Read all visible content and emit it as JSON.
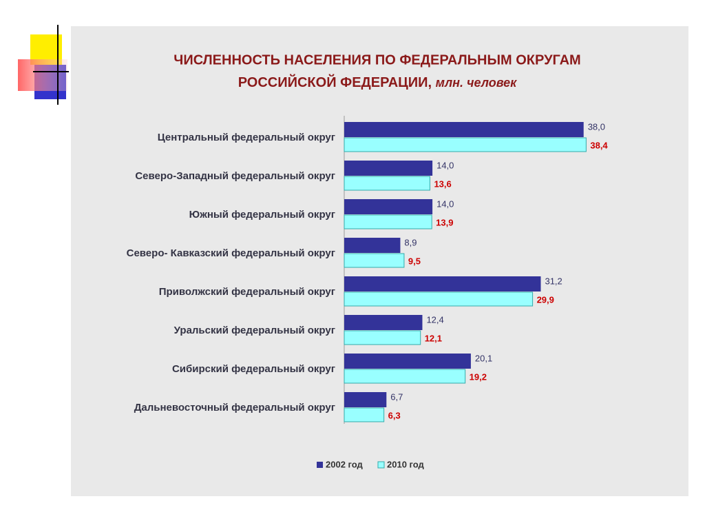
{
  "chart_data": {
    "type": "hbar",
    "title": [
      "ЧИСЛЕННОСТЬ НАСЕЛЕНИЯ ПО ФЕДЕРАЛЬНЫМ ОКРУГАМ",
      "РОССИЙСКОЙ ФЕДЕРАЦИИ,"
    ],
    "unit": "млн. человек",
    "categories": [
      "Центральный федеральный округ",
      "Северо-Западный федеральный округ",
      "Южный федеральный округ",
      "Северо- Кавказский федеральный округ",
      "Приволжский федеральный округ",
      "Уральский федеральный округ",
      "Сибирский федеральный округ",
      "Дальневосточный федеральный округ"
    ],
    "series": [
      {
        "name": "2002 год",
        "color": "#333399",
        "label_color": "#333366",
        "values": [
          38.0,
          14.0,
          14.0,
          8.9,
          31.2,
          12.4,
          20.1,
          6.7
        ],
        "value_labels": [
          "38,0",
          "14,0",
          "14,0",
          "8,9",
          "31,2",
          "12,4",
          "20,1",
          "6,7"
        ]
      },
      {
        "name": "2010 год",
        "color": "#99ffff",
        "label_color": "#cc0000",
        "values": [
          38.4,
          13.6,
          13.9,
          9.5,
          29.9,
          12.1,
          19.2,
          6.3
        ],
        "value_labels": [
          "38,4",
          "13,6",
          "13,9",
          "9,5",
          "29,9",
          "12,1",
          "19,2",
          "6,3"
        ]
      }
    ],
    "xlim": [
      0,
      40
    ]
  }
}
